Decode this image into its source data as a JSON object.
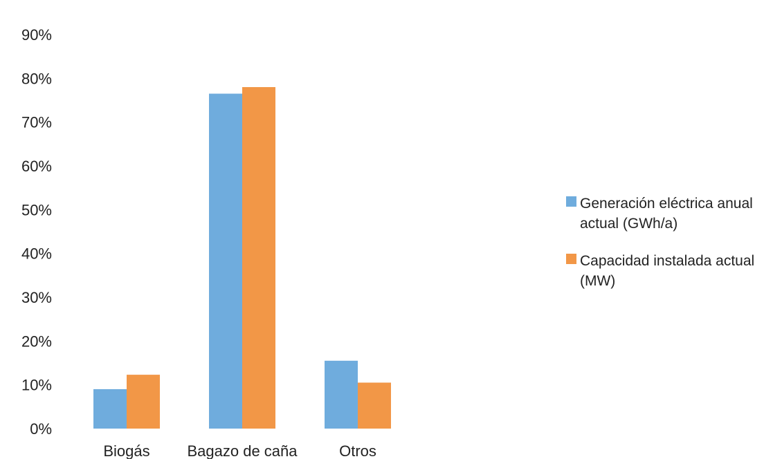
{
  "chart_data": {
    "type": "bar",
    "categories": [
      "Biogás",
      "Bagazo de caña",
      "Otros"
    ],
    "series": [
      {
        "name": "Generación eléctrica anual actual (GWh/a)",
        "color": "#6FACDD",
        "values": [
          9,
          76.5,
          15.5
        ]
      },
      {
        "name": "Capacidad instalada actual (MW)",
        "color": "#F29747",
        "values": [
          12.3,
          78,
          10.5
        ]
      }
    ],
    "y_ticks": [
      "0%",
      "10%",
      "20%",
      "30%",
      "40%",
      "50%",
      "60%",
      "70%",
      "80%",
      "90%"
    ],
    "ylim": [
      0,
      90
    ],
    "y_unit": "%",
    "grid": false,
    "legend_position": "right",
    "title": "",
    "xlabel": "",
    "ylabel": ""
  }
}
